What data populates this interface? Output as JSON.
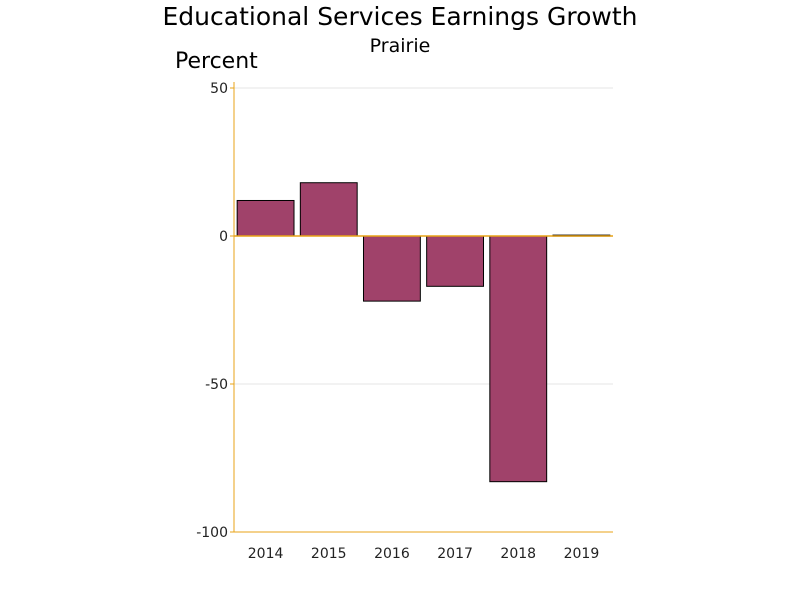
{
  "chart_data": {
    "type": "bar",
    "title": "Educational Services Earnings Growth",
    "subtitle": "Prairie",
    "ylabel": "Percent",
    "xlabel": "",
    "categories": [
      "2014",
      "2015",
      "2016",
      "2017",
      "2018",
      "2019"
    ],
    "values": [
      12,
      18,
      -22,
      -17,
      -83,
      0.3
    ],
    "ylim": [
      -100,
      50
    ],
    "yticks": [
      50,
      0,
      -50,
      -100
    ],
    "grid": true,
    "legend": "none",
    "colors": {
      "bar_fill": "#a0426a",
      "bar_stroke": "#000000",
      "axis": "#e8a317",
      "zero_line": "#e8a317",
      "grid": "#e6e6e6"
    }
  }
}
